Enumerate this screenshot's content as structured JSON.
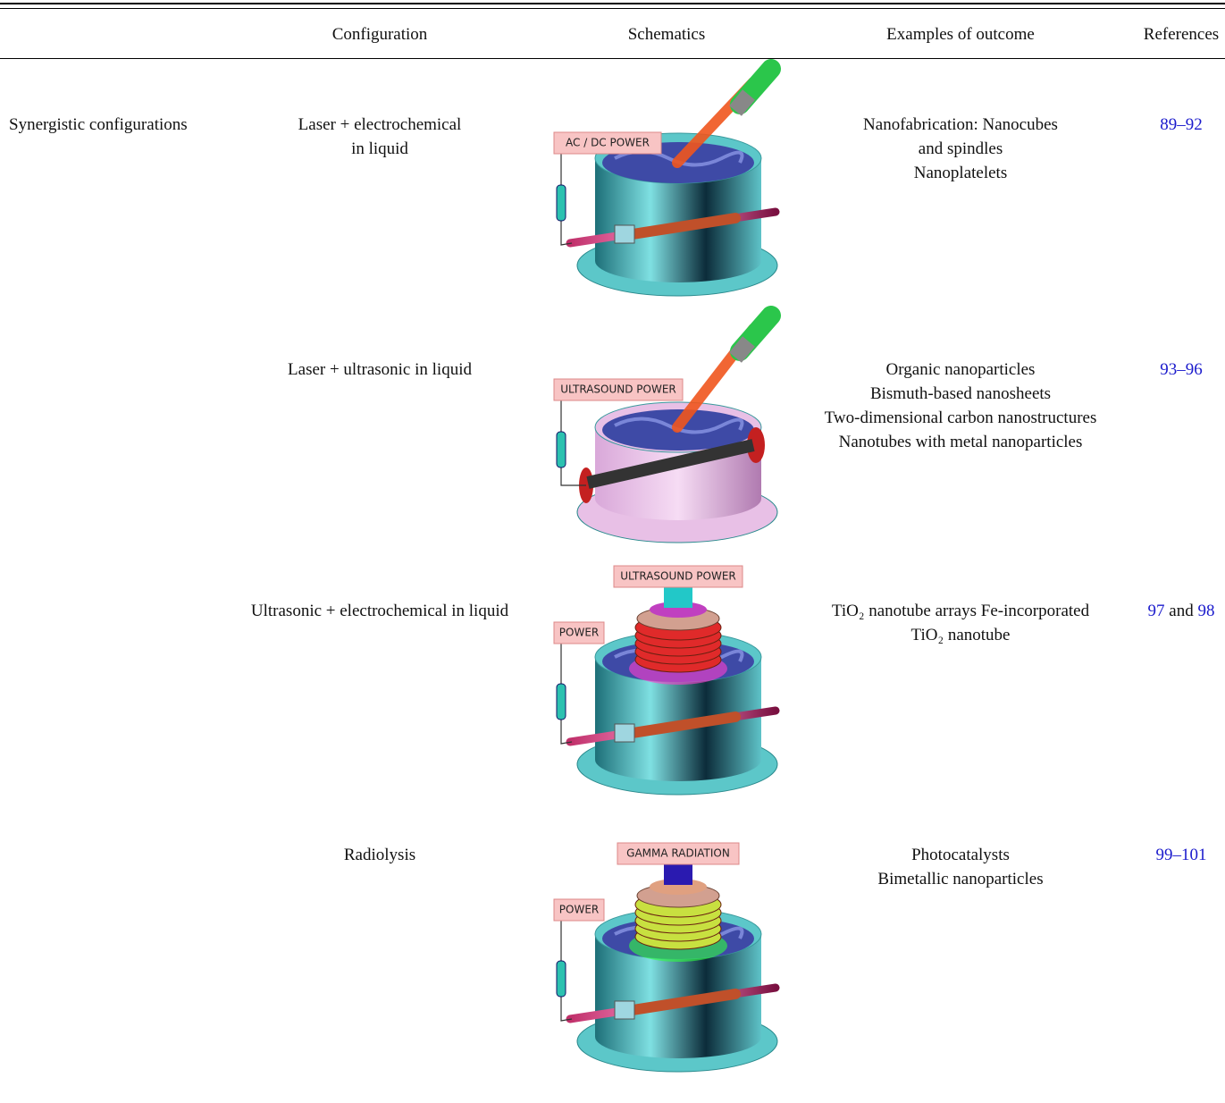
{
  "table": {
    "headers": [
      "Configuration",
      "Schematics",
      "Examples of outcome",
      "References"
    ],
    "group": "Synergistic configurations",
    "rows": [
      {
        "configuration": [
          "Laser + electrochemical",
          "in liquid"
        ],
        "schematic_labels": [
          "AC / DC POWER"
        ],
        "outcomes": [
          "Nanofabrication: Nanocubes",
          "and spindles",
          "Nanoplatelets"
        ],
        "references": [
          "89–92"
        ]
      },
      {
        "configuration": [
          "Laser + ultrasonic in liquid"
        ],
        "schematic_labels": [
          "ULTRASOUND POWER"
        ],
        "outcomes": [
          "Organic nanoparticles",
          "Bismuth-based nanosheets",
          "Two-dimensional carbon nanostructures",
          "Nanotubes with metal nanoparticles"
        ],
        "references": [
          "93–96"
        ]
      },
      {
        "configuration": [
          "Ultrasonic + electrochemical in liquid"
        ],
        "schematic_labels": [
          "ULTRASOUND POWER",
          "POWER"
        ],
        "outcomes": [
          "TiO₂ nanotube arrays Fe-incorporated",
          "TiO₂ nanotube"
        ],
        "references": [
          "97",
          "98"
        ],
        "reference_joiner": "and"
      },
      {
        "configuration": [
          "Radiolysis"
        ],
        "schematic_labels": [
          "GAMMA RADIATION",
          "POWER"
        ],
        "outcomes": [
          "Photocatalysts",
          "Bimetallic nanoparticles"
        ],
        "references": [
          "99–101"
        ]
      }
    ]
  }
}
